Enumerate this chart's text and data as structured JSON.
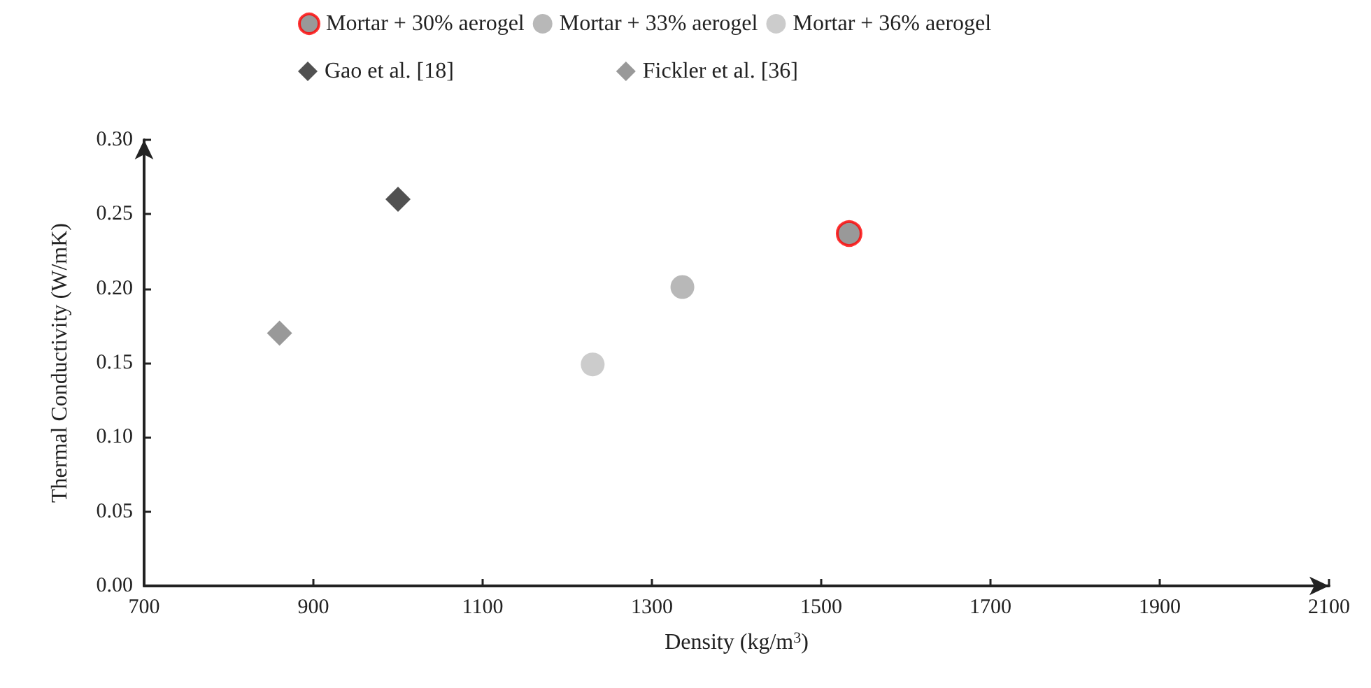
{
  "chart_data": {
    "type": "scatter",
    "xlabel": "Density (kg/m$^{3}$)",
    "ylabel": "Thermal Conductivity (W/mK)",
    "xlim": [
      700,
      2100
    ],
    "xticks": [
      700,
      900,
      1100,
      1300,
      1500,
      1700,
      1900,
      2100
    ],
    "ylim": [
      0,
      0.3
    ],
    "yticks": [
      {
        "value": 0,
        "label": "0.00"
      },
      {
        "value": 0.05,
        "label": "0.05"
      },
      {
        "value": 0.1,
        "label": "0.10"
      },
      {
        "value": 0.15,
        "label": "0.15"
      },
      {
        "value": 0.2,
        "label": "0.20"
      },
      {
        "value": 0.25,
        "label": "0.25"
      },
      {
        "value": 0.3,
        "label": "0.30"
      }
    ],
    "grid": false,
    "legend": "top",
    "series": [
      {
        "name": "Mortar + 30% aerogel",
        "color": "#808080",
        "marker": "circle",
        "x": [
          1533
        ],
        "values": [
          0.237
        ]
      },
      {
        "name": "Mortar + 33% aerogel",
        "color": "#a6a6a6",
        "marker": "circle",
        "x": [
          1336
        ],
        "values": [
          0.201
        ]
      },
      {
        "name": "Mortar + 36% aerogel",
        "color": "#bfbfbf",
        "marker": "circle",
        "x": [
          1230
        ],
        "values": [
          0.149
        ]
      },
      {
        "name": "Gao et al. [18]",
        "color": "#262626",
        "marker": "diamond",
        "x": [
          1000
        ],
        "values": [
          0.26
        ]
      },
      {
        "name": "Fickler et al. [36]",
        "color": "#808080",
        "marker": "diamond",
        "x": [
          860
        ],
        "values": [
          0.17
        ]
      }
    ]
  }
}
